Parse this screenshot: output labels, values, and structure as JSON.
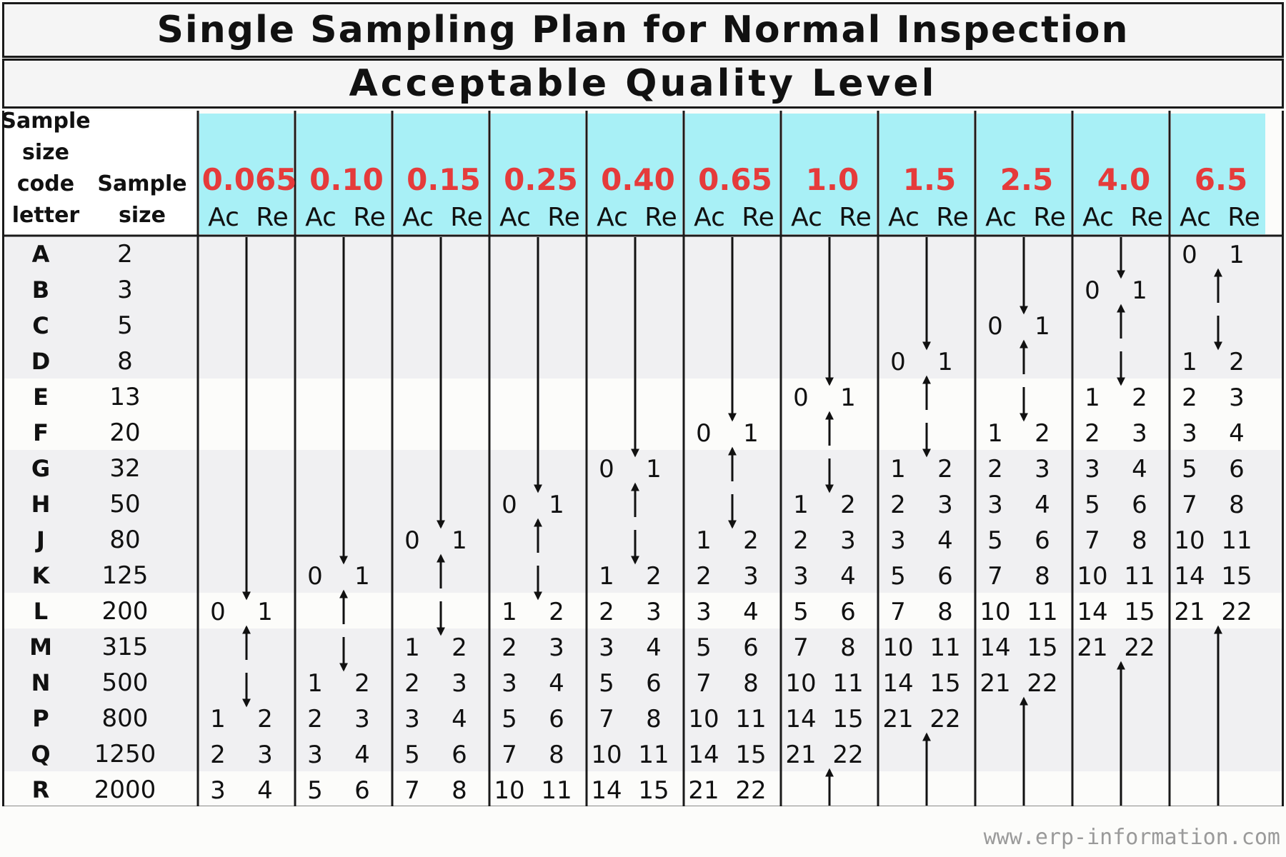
{
  "title": "Single Sampling Plan for Normal Inspection",
  "subtitle": "Acceptable Quality Level",
  "header": {
    "code_letter_lines": [
      "Sample",
      "size",
      "code",
      "letter"
    ],
    "sample_size_lines": [
      "Sample",
      "size"
    ],
    "ac_label": "Ac",
    "re_label": "Re"
  },
  "aql_levels": [
    "0.065",
    "0.10",
    "0.15",
    "0.25",
    "0.40",
    "0.65",
    "1.0",
    "1.5",
    "2.5",
    "4.0",
    "6.5"
  ],
  "rows": [
    {
      "letter": "A",
      "size": "2"
    },
    {
      "letter": "B",
      "size": "3"
    },
    {
      "letter": "C",
      "size": "5"
    },
    {
      "letter": "D",
      "size": "8"
    },
    {
      "letter": "E",
      "size": "13"
    },
    {
      "letter": "F",
      "size": "20"
    },
    {
      "letter": "G",
      "size": "32"
    },
    {
      "letter": "H",
      "size": "50"
    },
    {
      "letter": "J",
      "size": "80"
    },
    {
      "letter": "K",
      "size": "125"
    },
    {
      "letter": "L",
      "size": "200"
    },
    {
      "letter": "M",
      "size": "315"
    },
    {
      "letter": "N",
      "size": "500"
    },
    {
      "letter": "P",
      "size": "800"
    },
    {
      "letter": "Q",
      "size": "1250"
    },
    {
      "letter": "R",
      "size": "2000"
    }
  ],
  "plan": [
    [
      "down",
      "down",
      "down",
      "down",
      "down",
      "down",
      "down",
      "down",
      "down",
      "down",
      [
        "0",
        "1"
      ]
    ],
    [
      "down",
      "down",
      "down",
      "down",
      "down",
      "down",
      "down",
      "down",
      "down",
      [
        "0",
        "1"
      ],
      "up"
    ],
    [
      "down",
      "down",
      "down",
      "down",
      "down",
      "down",
      "down",
      "down",
      [
        "0",
        "1"
      ],
      "up",
      "down"
    ],
    [
      "down",
      "down",
      "down",
      "down",
      "down",
      "down",
      "down",
      [
        "0",
        "1"
      ],
      "up",
      "down",
      [
        "1",
        "2"
      ]
    ],
    [
      "down",
      "down",
      "down",
      "down",
      "down",
      "down",
      [
        "0",
        "1"
      ],
      "up",
      "down",
      [
        "1",
        "2"
      ],
      [
        "2",
        "3"
      ]
    ],
    [
      "down",
      "down",
      "down",
      "down",
      "down",
      [
        "0",
        "1"
      ],
      "up",
      "down",
      [
        "1",
        "2"
      ],
      [
        "2",
        "3"
      ],
      [
        "3",
        "4"
      ]
    ],
    [
      "down",
      "down",
      "down",
      "down",
      [
        "0",
        "1"
      ],
      "up",
      "down",
      [
        "1",
        "2"
      ],
      [
        "2",
        "3"
      ],
      [
        "3",
        "4"
      ],
      [
        "5",
        "6"
      ]
    ],
    [
      "down",
      "down",
      "down",
      [
        "0",
        "1"
      ],
      "up",
      "down",
      [
        "1",
        "2"
      ],
      [
        "2",
        "3"
      ],
      [
        "3",
        "4"
      ],
      [
        "5",
        "6"
      ],
      [
        "7",
        "8"
      ]
    ],
    [
      "down",
      "down",
      [
        "0",
        "1"
      ],
      "up",
      "down",
      [
        "1",
        "2"
      ],
      [
        "2",
        "3"
      ],
      [
        "3",
        "4"
      ],
      [
        "5",
        "6"
      ],
      [
        "7",
        "8"
      ],
      [
        "10",
        "11"
      ]
    ],
    [
      "down",
      [
        "0",
        "1"
      ],
      "up",
      "down",
      [
        "1",
        "2"
      ],
      [
        "2",
        "3"
      ],
      [
        "3",
        "4"
      ],
      [
        "5",
        "6"
      ],
      [
        "7",
        "8"
      ],
      [
        "10",
        "11"
      ],
      [
        "14",
        "15"
      ]
    ],
    [
      [
        "0",
        "1"
      ],
      "up",
      "down",
      [
        "1",
        "2"
      ],
      [
        "2",
        "3"
      ],
      [
        "3",
        "4"
      ],
      [
        "5",
        "6"
      ],
      [
        "7",
        "8"
      ],
      [
        "10",
        "11"
      ],
      [
        "14",
        "15"
      ],
      [
        "21",
        "22"
      ]
    ],
    [
      "up",
      "down",
      [
        "1",
        "2"
      ],
      [
        "2",
        "3"
      ],
      [
        "3",
        "4"
      ],
      [
        "5",
        "6"
      ],
      [
        "7",
        "8"
      ],
      [
        "10",
        "11"
      ],
      [
        "14",
        "15"
      ],
      [
        "21",
        "22"
      ],
      "up"
    ],
    [
      "down",
      [
        "1",
        "2"
      ],
      [
        "2",
        "3"
      ],
      [
        "3",
        "4"
      ],
      [
        "5",
        "6"
      ],
      [
        "7",
        "8"
      ],
      [
        "10",
        "11"
      ],
      [
        "14",
        "15"
      ],
      [
        "21",
        "22"
      ],
      "up",
      "up"
    ],
    [
      [
        "1",
        "2"
      ],
      [
        "2",
        "3"
      ],
      [
        "3",
        "4"
      ],
      [
        "5",
        "6"
      ],
      [
        "7",
        "8"
      ],
      [
        "10",
        "11"
      ],
      [
        "14",
        "15"
      ],
      [
        "21",
        "22"
      ],
      "up",
      "up",
      "up"
    ],
    [
      [
        "2",
        "3"
      ],
      [
        "3",
        "4"
      ],
      [
        "5",
        "6"
      ],
      [
        "7",
        "8"
      ],
      [
        "10",
        "11"
      ],
      [
        "14",
        "15"
      ],
      [
        "21",
        "22"
      ],
      "up",
      "up",
      "up",
      "up"
    ],
    [
      [
        "3",
        "4"
      ],
      [
        "5",
        "6"
      ],
      [
        "7",
        "8"
      ],
      [
        "10",
        "11"
      ],
      [
        "14",
        "15"
      ],
      [
        "21",
        "22"
      ],
      "up",
      "up",
      "up",
      "up",
      "up"
    ]
  ],
  "colors": {
    "header_fill": "#a8f0f6",
    "aql_text": "#e53b3b",
    "band_gray": "#f0f0f2",
    "band_white": "#fcfcfa",
    "grid_line": "#1a1a1a",
    "watermark": "#9a9a9a"
  },
  "watermark": "www.erp-information.com"
}
